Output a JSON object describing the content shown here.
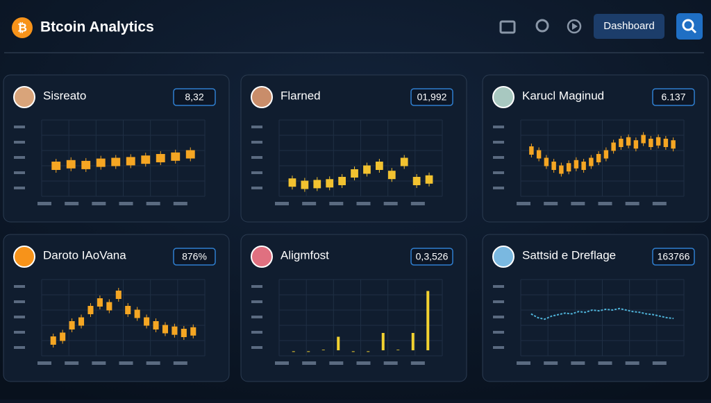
{
  "header": {
    "title": "Btcoin Analytics",
    "button": "Dashboard"
  },
  "cards": [
    {
      "title": "Sisreato",
      "badge": "8,32",
      "type": "candle",
      "color": "#f5a623",
      "ylim": [
        0,
        100
      ],
      "values": [
        40,
        42,
        41,
        44,
        45,
        46,
        48,
        50,
        52,
        55
      ]
    },
    {
      "title": "Flarned",
      "badge": "01,992",
      "type": "candle",
      "color": "#f2c230",
      "ylim": [
        0,
        100
      ],
      "values": [
        18,
        15,
        16,
        17,
        20,
        30,
        35,
        40,
        28,
        45,
        20,
        22
      ]
    },
    {
      "title": "Karucl Maginud",
      "badge": "6.137",
      "type": "candle",
      "color": "#f5a623",
      "ylim": [
        0,
        100
      ],
      "values": [
        60,
        55,
        45,
        40,
        35,
        38,
        42,
        40,
        45,
        50,
        55,
        65,
        70,
        72,
        68,
        75,
        70,
        72,
        70,
        68
      ]
    },
    {
      "title": "Daroto IAoVana",
      "badge": "876%",
      "type": "candle",
      "color": "#f5a623",
      "ylim": [
        0,
        100
      ],
      "values": [
        20,
        25,
        40,
        45,
        60,
        70,
        65,
        80,
        60,
        55,
        45,
        40,
        35,
        33,
        30,
        32
      ]
    },
    {
      "title": "Aligmfost",
      "badge": "0,3,526",
      "type": "bar",
      "color": "#f2d230",
      "ylim": [
        0,
        100
      ],
      "values": [
        6,
        6,
        8,
        25,
        6,
        6,
        30,
        8,
        30,
        85
      ]
    },
    {
      "title": "Sattsid e Dreflage",
      "badge": "163766",
      "type": "line",
      "color": "#4fb3d9",
      "ylim": [
        0,
        100
      ],
      "values": [
        55,
        50,
        48,
        52,
        54,
        56,
        55,
        58,
        57,
        60,
        59,
        61,
        60,
        62,
        60,
        58,
        57,
        55,
        54,
        52,
        50,
        49
      ]
    }
  ]
}
